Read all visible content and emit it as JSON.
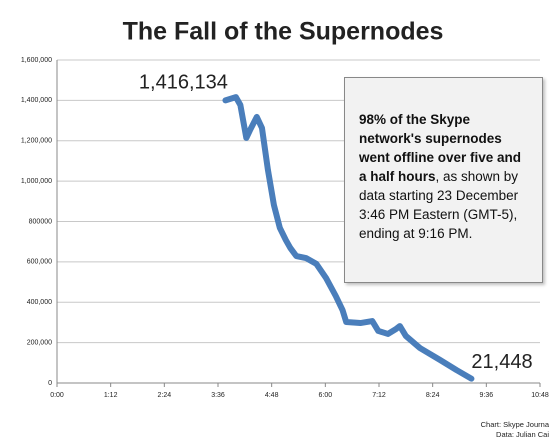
{
  "chart_data": {
    "type": "line",
    "title": "The Fall of the Supernodes",
    "x": [
      226,
      240,
      246,
      254,
      259,
      268,
      275,
      283,
      291,
      299,
      307,
      313,
      321,
      334,
      348,
      361,
      374,
      383,
      388,
      407,
      423,
      431,
      444,
      455,
      460,
      468,
      487,
      514,
      536,
      556
    ],
    "values": [
      1400000,
      1416134,
      1377000,
      1214000,
      1253000,
      1318000,
      1263000,
      1055000,
      882000,
      768000,
      708000,
      669000,
      629000,
      619000,
      590000,
      520000,
      431000,
      362000,
      302000,
      297000,
      307000,
      258000,
      243000,
      268000,
      282000,
      233000,
      173000,
      114000,
      64000,
      21448
    ],
    "value_labels": [
      null,
      "1,416,134",
      null,
      null,
      null,
      null,
      null,
      null,
      null,
      null,
      null,
      null,
      null,
      null,
      null,
      null,
      null,
      null,
      null,
      null,
      null,
      null,
      null,
      null,
      null,
      null,
      null,
      null,
      null,
      "21,448"
    ],
    "color": "#4a7ebb",
    "xlim": [
      0,
      648
    ],
    "xticks": [
      {
        "value": 0,
        "label": "0:00"
      },
      {
        "value": 72,
        "label": "1:12"
      },
      {
        "value": 144,
        "label": "2:24"
      },
      {
        "value": 216,
        "label": "3:36"
      },
      {
        "value": 288,
        "label": "4:48"
      },
      {
        "value": 360,
        "label": "6:00"
      },
      {
        "value": 432,
        "label": "7:12"
      },
      {
        "value": 504,
        "label": "8:24"
      },
      {
        "value": 576,
        "label": "9:36"
      },
      {
        "value": 648,
        "label": "10:48"
      }
    ],
    "ylim": [
      0,
      1600000
    ],
    "yticks": [
      0,
      {
        "value": 200000,
        "label": "200,000"
      },
      {
        "value": 400000,
        "label": "400,000"
      },
      {
        "value": 600000,
        "label": "600,000"
      },
      {
        "value": 800000,
        "label": "800000"
      },
      {
        "value": 1000000,
        "label": "1,000,000"
      },
      {
        "value": 1200000,
        "label": "1,200,000"
      },
      {
        "value": 1400000,
        "label": "1,400,000"
      },
      {
        "value": 1600000,
        "label": "1,600,000"
      }
    ],
    "grid": true,
    "annotation": {
      "bold": "98% of the Skype network's supernodes went offline over five and a half hours",
      "text": ", as shown by data starting 23 December 3:46 PM Eastern (GMT-5), ending at 9:16 PM."
    },
    "footer": [
      "Chart: Skype Journa",
      "Data: Julian Cai"
    ]
  }
}
